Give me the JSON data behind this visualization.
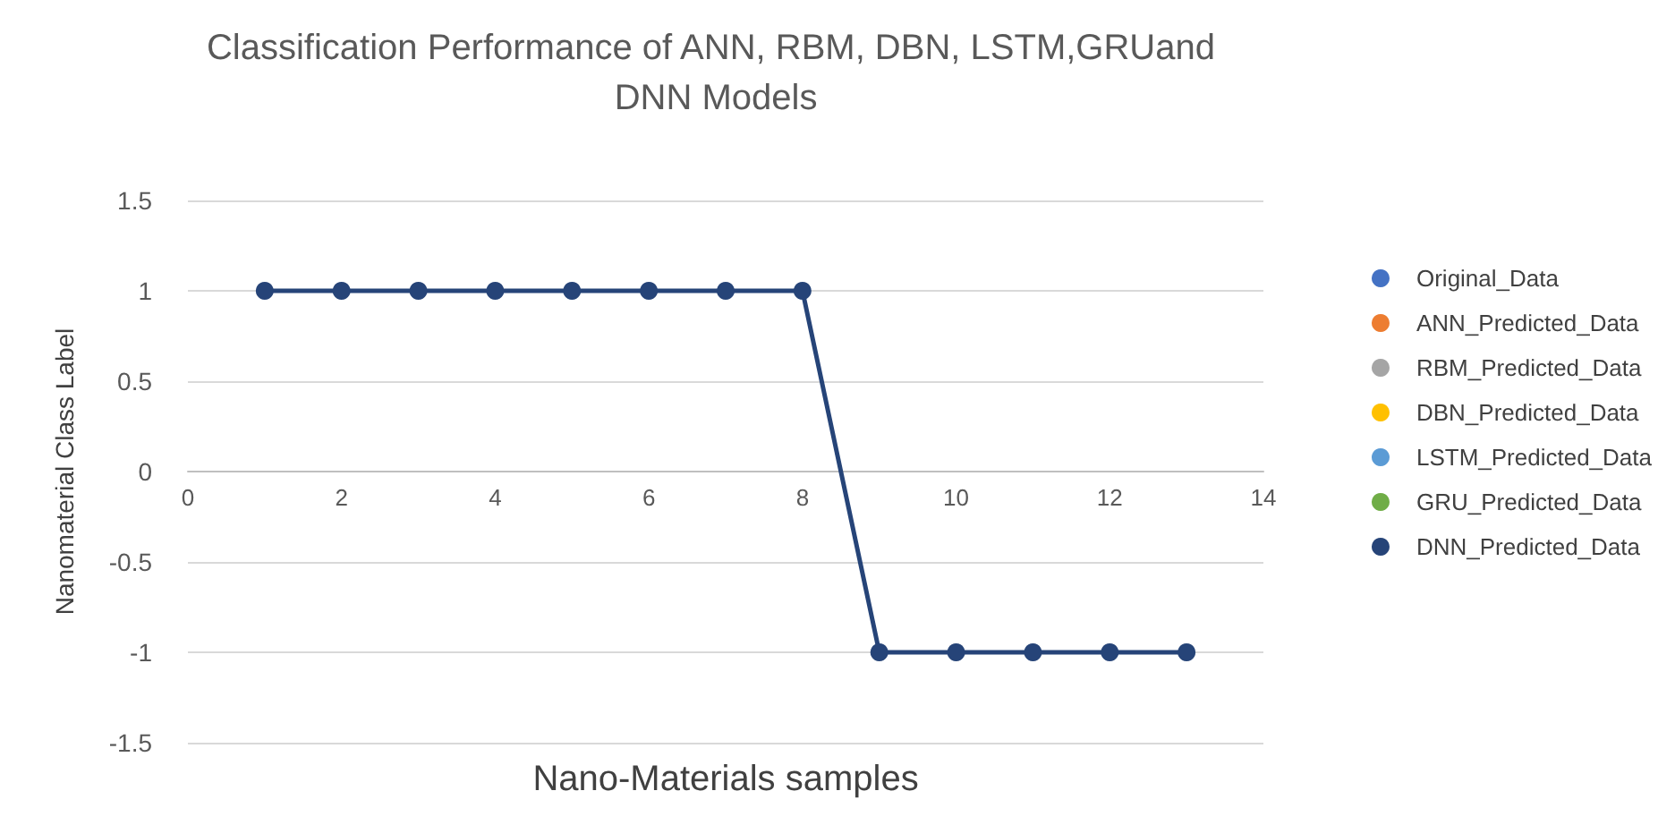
{
  "chart_data": {
    "type": "line",
    "title": "Classification Performance of ANN, RBM, DBN, LSTM,GRUand DNN Models",
    "xlabel": "Nano-Materials samples",
    "ylabel": "Nanomaterial Class Label",
    "x": [
      1,
      2,
      3,
      4,
      5,
      6,
      7,
      8,
      9,
      10,
      11,
      12,
      13
    ],
    "series": [
      {
        "name": "Original_Data",
        "color": "#4472c4",
        "values": [
          null,
          null,
          null,
          null,
          null,
          null,
          null,
          null,
          null,
          null,
          null,
          null,
          null
        ]
      },
      {
        "name": "ANN_Predicted_Data",
        "color": "#ed7d31",
        "values": [
          null,
          null,
          null,
          null,
          null,
          null,
          null,
          null,
          null,
          null,
          null,
          null,
          null
        ]
      },
      {
        "name": "RBM_Predicted_Data",
        "color": "#a5a5a5",
        "values": [
          null,
          null,
          null,
          null,
          null,
          null,
          null,
          null,
          null,
          null,
          null,
          null,
          null
        ]
      },
      {
        "name": "DBN_Predicted_Data",
        "color": "#ffc000",
        "values": [
          null,
          null,
          null,
          null,
          null,
          null,
          null,
          null,
          null,
          null,
          null,
          null,
          null
        ]
      },
      {
        "name": "LSTM_Predicted_Data",
        "color": "#5b9bd5",
        "values": [
          null,
          null,
          null,
          null,
          null,
          null,
          null,
          null,
          null,
          null,
          null,
          null,
          null
        ]
      },
      {
        "name": "GRU_Predicted_Data",
        "color": "#70ad47",
        "values": [
          null,
          null,
          null,
          null,
          null,
          null,
          null,
          null,
          null,
          null,
          null,
          null,
          null
        ]
      },
      {
        "name": "DNN_Predicted_Data",
        "color": "#264478",
        "values": [
          1,
          1,
          1,
          1,
          1,
          1,
          1,
          1,
          -1,
          -1,
          -1,
          -1,
          -1
        ]
      }
    ],
    "xlim": [
      0,
      14
    ],
    "xticks": [
      0,
      2,
      4,
      6,
      8,
      10,
      12,
      14
    ],
    "ylim": [
      -1.5,
      1.5
    ],
    "yticks": [
      -1.5,
      -1,
      -0.5,
      0,
      0.5,
      1,
      1.5
    ],
    "grid": "y",
    "legend": "right",
    "marker": "circle",
    "line_style": "solid"
  }
}
